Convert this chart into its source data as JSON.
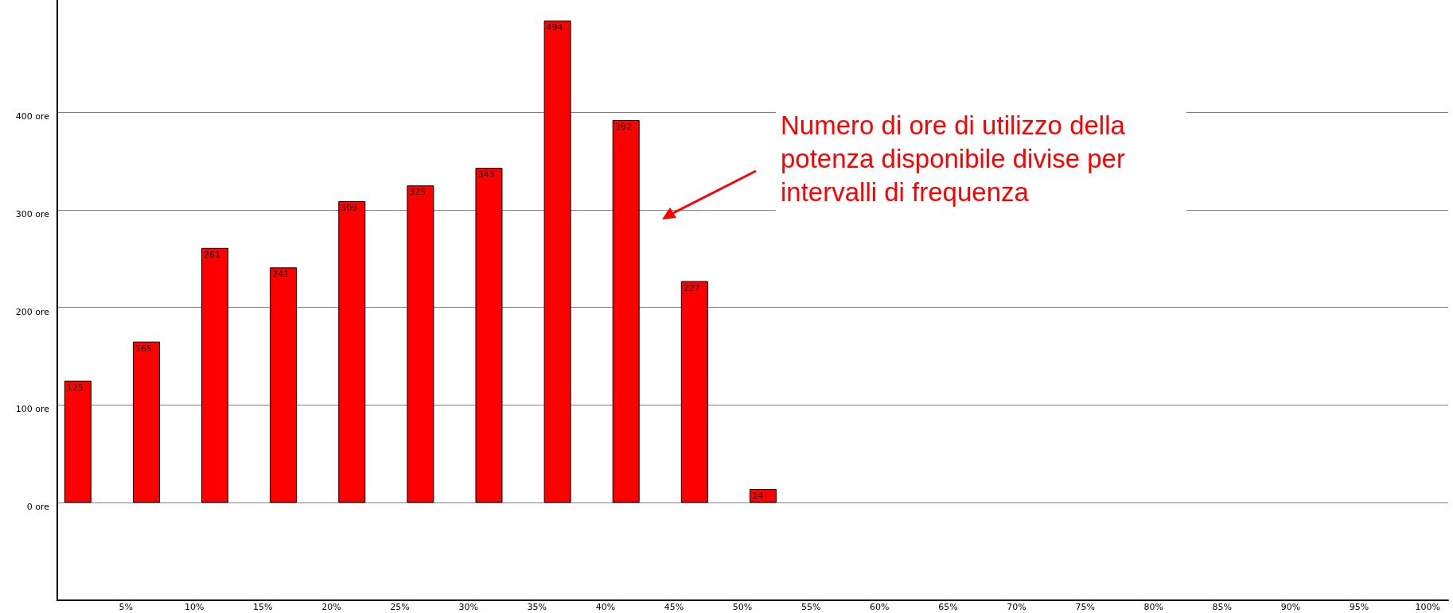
{
  "chart_data": {
    "type": "bar",
    "x": [
      1.5,
      6.5,
      11.5,
      16.5,
      21.5,
      26.5,
      31.5,
      36.5,
      41.5,
      46.5,
      51.5
    ],
    "values": [
      125,
      165,
      261,
      241,
      309,
      325,
      343,
      494,
      392,
      227,
      14
    ],
    "color": "#ff0000",
    "data_labels": true,
    "xlim": [
      0,
      101.5
    ],
    "xticks": [
      {
        "value": 5,
        "label": "5%"
      },
      {
        "value": 10,
        "label": "10%"
      },
      {
        "value": 15,
        "label": "15%"
      },
      {
        "value": 20,
        "label": "20%"
      },
      {
        "value": 25,
        "label": "25%"
      },
      {
        "value": 30,
        "label": "30%"
      },
      {
        "value": 35,
        "label": "35%"
      },
      {
        "value": 40,
        "label": "40%"
      },
      {
        "value": 45,
        "label": "45%"
      },
      {
        "value": 50,
        "label": "50%"
      },
      {
        "value": 55,
        "label": "55%"
      },
      {
        "value": 60,
        "label": "60%"
      },
      {
        "value": 65,
        "label": "65%"
      },
      {
        "value": 70,
        "label": "70%"
      },
      {
        "value": 75,
        "label": "75%"
      },
      {
        "value": 80,
        "label": "80%"
      },
      {
        "value": 85,
        "label": "85%"
      },
      {
        "value": 90,
        "label": "90%"
      },
      {
        "value": 95,
        "label": "95%"
      },
      {
        "value": 100,
        "label": "100%"
      }
    ],
    "ylim": [
      -100,
      515
    ],
    "yticks": [
      {
        "value": 0,
        "label": "0 ore"
      },
      {
        "value": 100,
        "label": "100 ore"
      },
      {
        "value": 200,
        "label": "200 ore"
      },
      {
        "value": 300,
        "label": "300 ore"
      },
      {
        "value": 400,
        "label": "400 ore"
      }
    ],
    "grid": "y",
    "annotations": [
      "Numero di ore di utilizzo della potenza disponibile divise per intervalli di frequenza"
    ]
  }
}
